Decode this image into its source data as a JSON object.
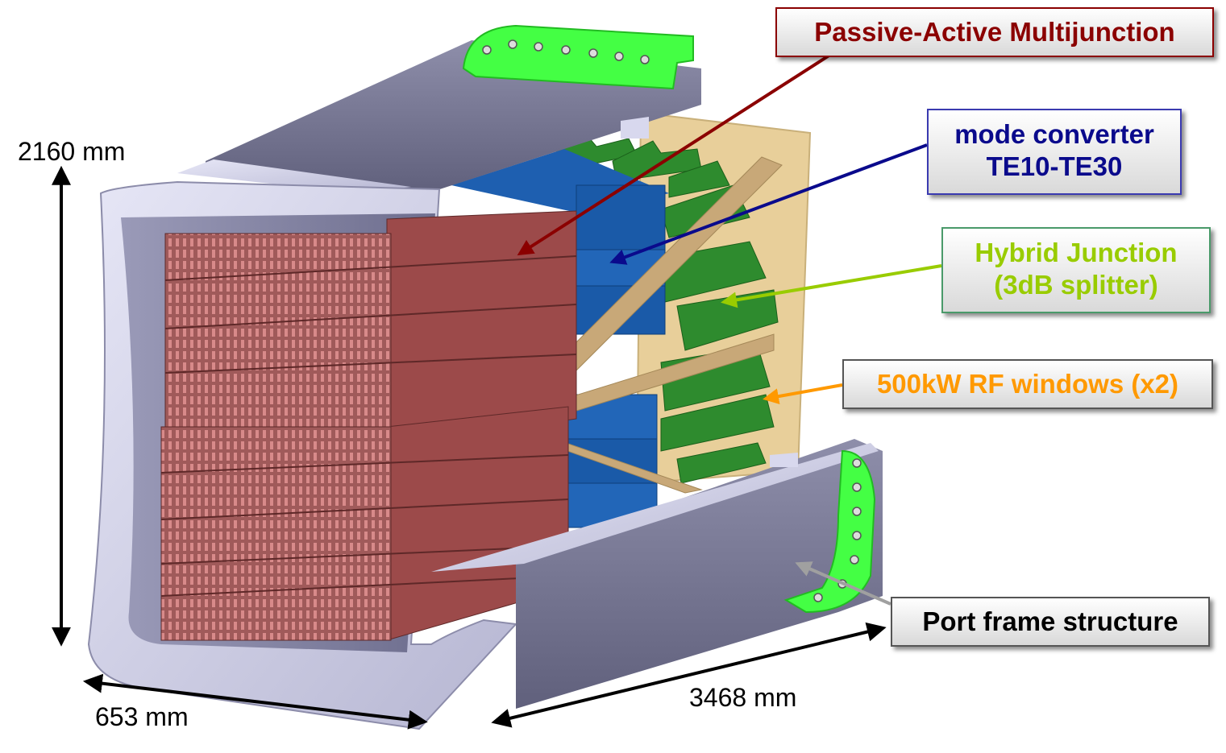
{
  "labels": {
    "multijunction": {
      "text": "Passive-Active Multijunction",
      "color": "#8b0000"
    },
    "mode_converter": {
      "line1": "mode converter",
      "line2": "TE10-TE30",
      "color": "#0a0a8c"
    },
    "hybrid_junction": {
      "line1": "Hybrid Junction",
      "line2": "(3dB splitter)",
      "color": "#99cc00"
    },
    "rf_windows": {
      "text": "500kW RF windows (x2)",
      "color": "#ff9900"
    },
    "port_frame": {
      "text": "Port frame structure",
      "color": "#000000"
    }
  },
  "dimensions": {
    "height": "2160 mm",
    "width": "653 mm",
    "depth": "3468 mm"
  }
}
